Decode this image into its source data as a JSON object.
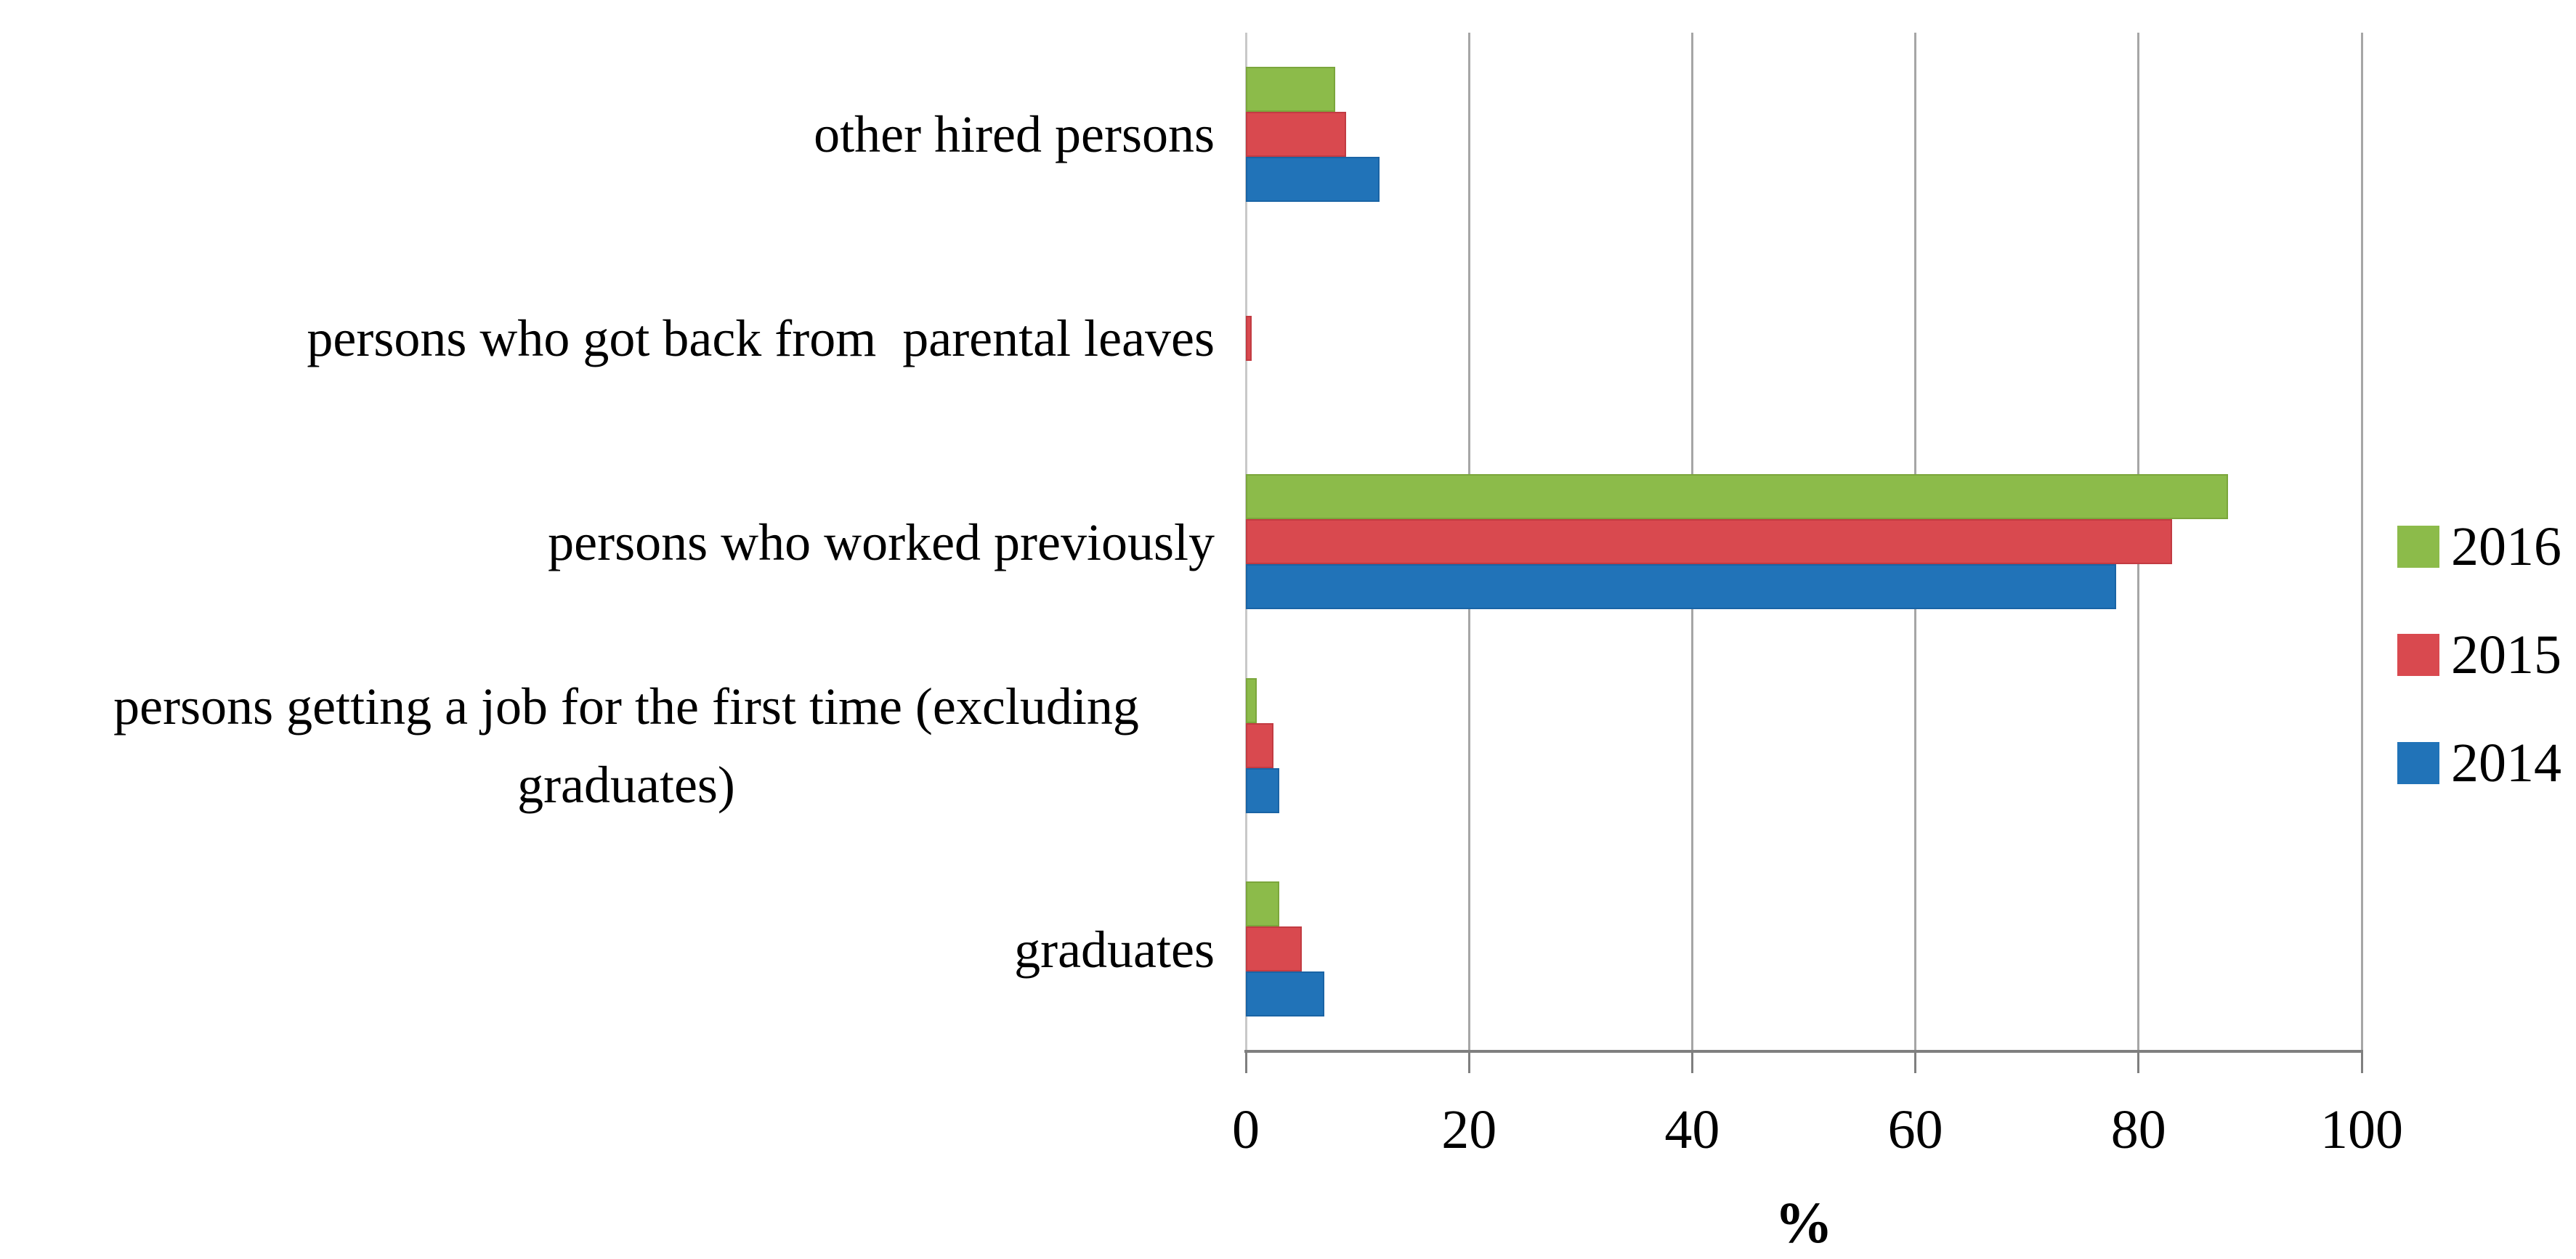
{
  "chart_data": {
    "type": "bar",
    "orientation": "horizontal",
    "title": "",
    "xlabel": "%",
    "ylabel": "",
    "xlim": [
      0,
      100
    ],
    "xticks": [
      0,
      20,
      40,
      60,
      80,
      100
    ],
    "grid": true,
    "legend_position": "right",
    "category_order": "top-to-bottom",
    "categories": [
      "other hired persons",
      "persons who got back from  parental leaves",
      "persons who worked previously",
      "persons getting a job for the first time (excluding graduates)",
      "graduates"
    ],
    "series": [
      {
        "name": "2016",
        "color": "#8CBB4A",
        "border_color": "#7BA63C",
        "values": [
          8,
          0,
          88,
          1,
          3
        ]
      },
      {
        "name": "2015",
        "color": "#D9494F",
        "border_color": "#C23B42",
        "values": [
          9,
          0.5,
          83,
          2.5,
          5
        ]
      },
      {
        "name": "2014",
        "color": "#2173B8",
        "border_color": "#1A64A5",
        "values": [
          12,
          0,
          78,
          3,
          7
        ]
      }
    ]
  },
  "colors": {
    "background": "#FFFFFF",
    "gridline": "#A6A6A6",
    "category_axis_line": "#C9C9C9",
    "value_axis_line": "#7F7F7F",
    "text": "#000000"
  }
}
